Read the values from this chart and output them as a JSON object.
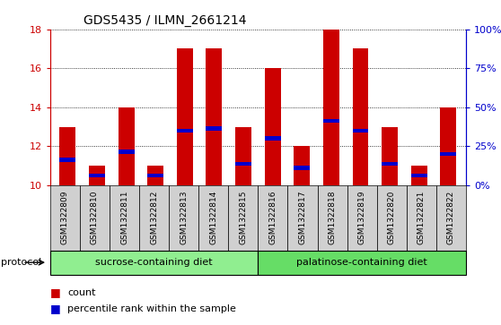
{
  "title": "GDS5435 / ILMN_2661214",
  "samples": [
    "GSM1322809",
    "GSM1322810",
    "GSM1322811",
    "GSM1322812",
    "GSM1322813",
    "GSM1322814",
    "GSM1322815",
    "GSM1322816",
    "GSM1322817",
    "GSM1322818",
    "GSM1322819",
    "GSM1322820",
    "GSM1322821",
    "GSM1322822"
  ],
  "counts": [
    13.0,
    11.0,
    14.0,
    11.0,
    17.0,
    17.0,
    13.0,
    16.0,
    12.0,
    18.0,
    17.0,
    13.0,
    11.0,
    14.0
  ],
  "percentile_ranks": [
    11.3,
    10.5,
    11.7,
    10.5,
    12.8,
    12.9,
    11.1,
    12.4,
    10.9,
    13.3,
    12.8,
    11.1,
    10.5,
    11.6
  ],
  "y_min": 10,
  "y_max": 18,
  "y_ticks": [
    10,
    12,
    14,
    16,
    18
  ],
  "y2_ticks": [
    0,
    25,
    50,
    75,
    100
  ],
  "y2_tick_positions": [
    10,
    12,
    14,
    16,
    18
  ],
  "bar_color": "#cc0000",
  "percentile_color": "#0000cc",
  "bar_width": 0.55,
  "groups": [
    {
      "label": "sucrose-containing diet",
      "start": 0,
      "end": 7,
      "color": "#90ee90"
    },
    {
      "label": "palatinose-containing diet",
      "start": 7,
      "end": 14,
      "color": "#66dd66"
    }
  ],
  "group_label_prefix": "protocol",
  "legend_count_label": "count",
  "legend_percentile_label": "percentile rank within the sample",
  "grid_color": "#000000",
  "background_color": "#ffffff",
  "plot_bg_color": "#ffffff",
  "sample_box_color": "#d0d0d0",
  "tick_label_color_left": "#cc0000",
  "tick_label_color_right": "#0000cc",
  "title_fontsize": 10,
  "tick_fontsize": 8,
  "sample_fontsize": 6.5,
  "group_fontsize": 8,
  "legend_fontsize": 8
}
